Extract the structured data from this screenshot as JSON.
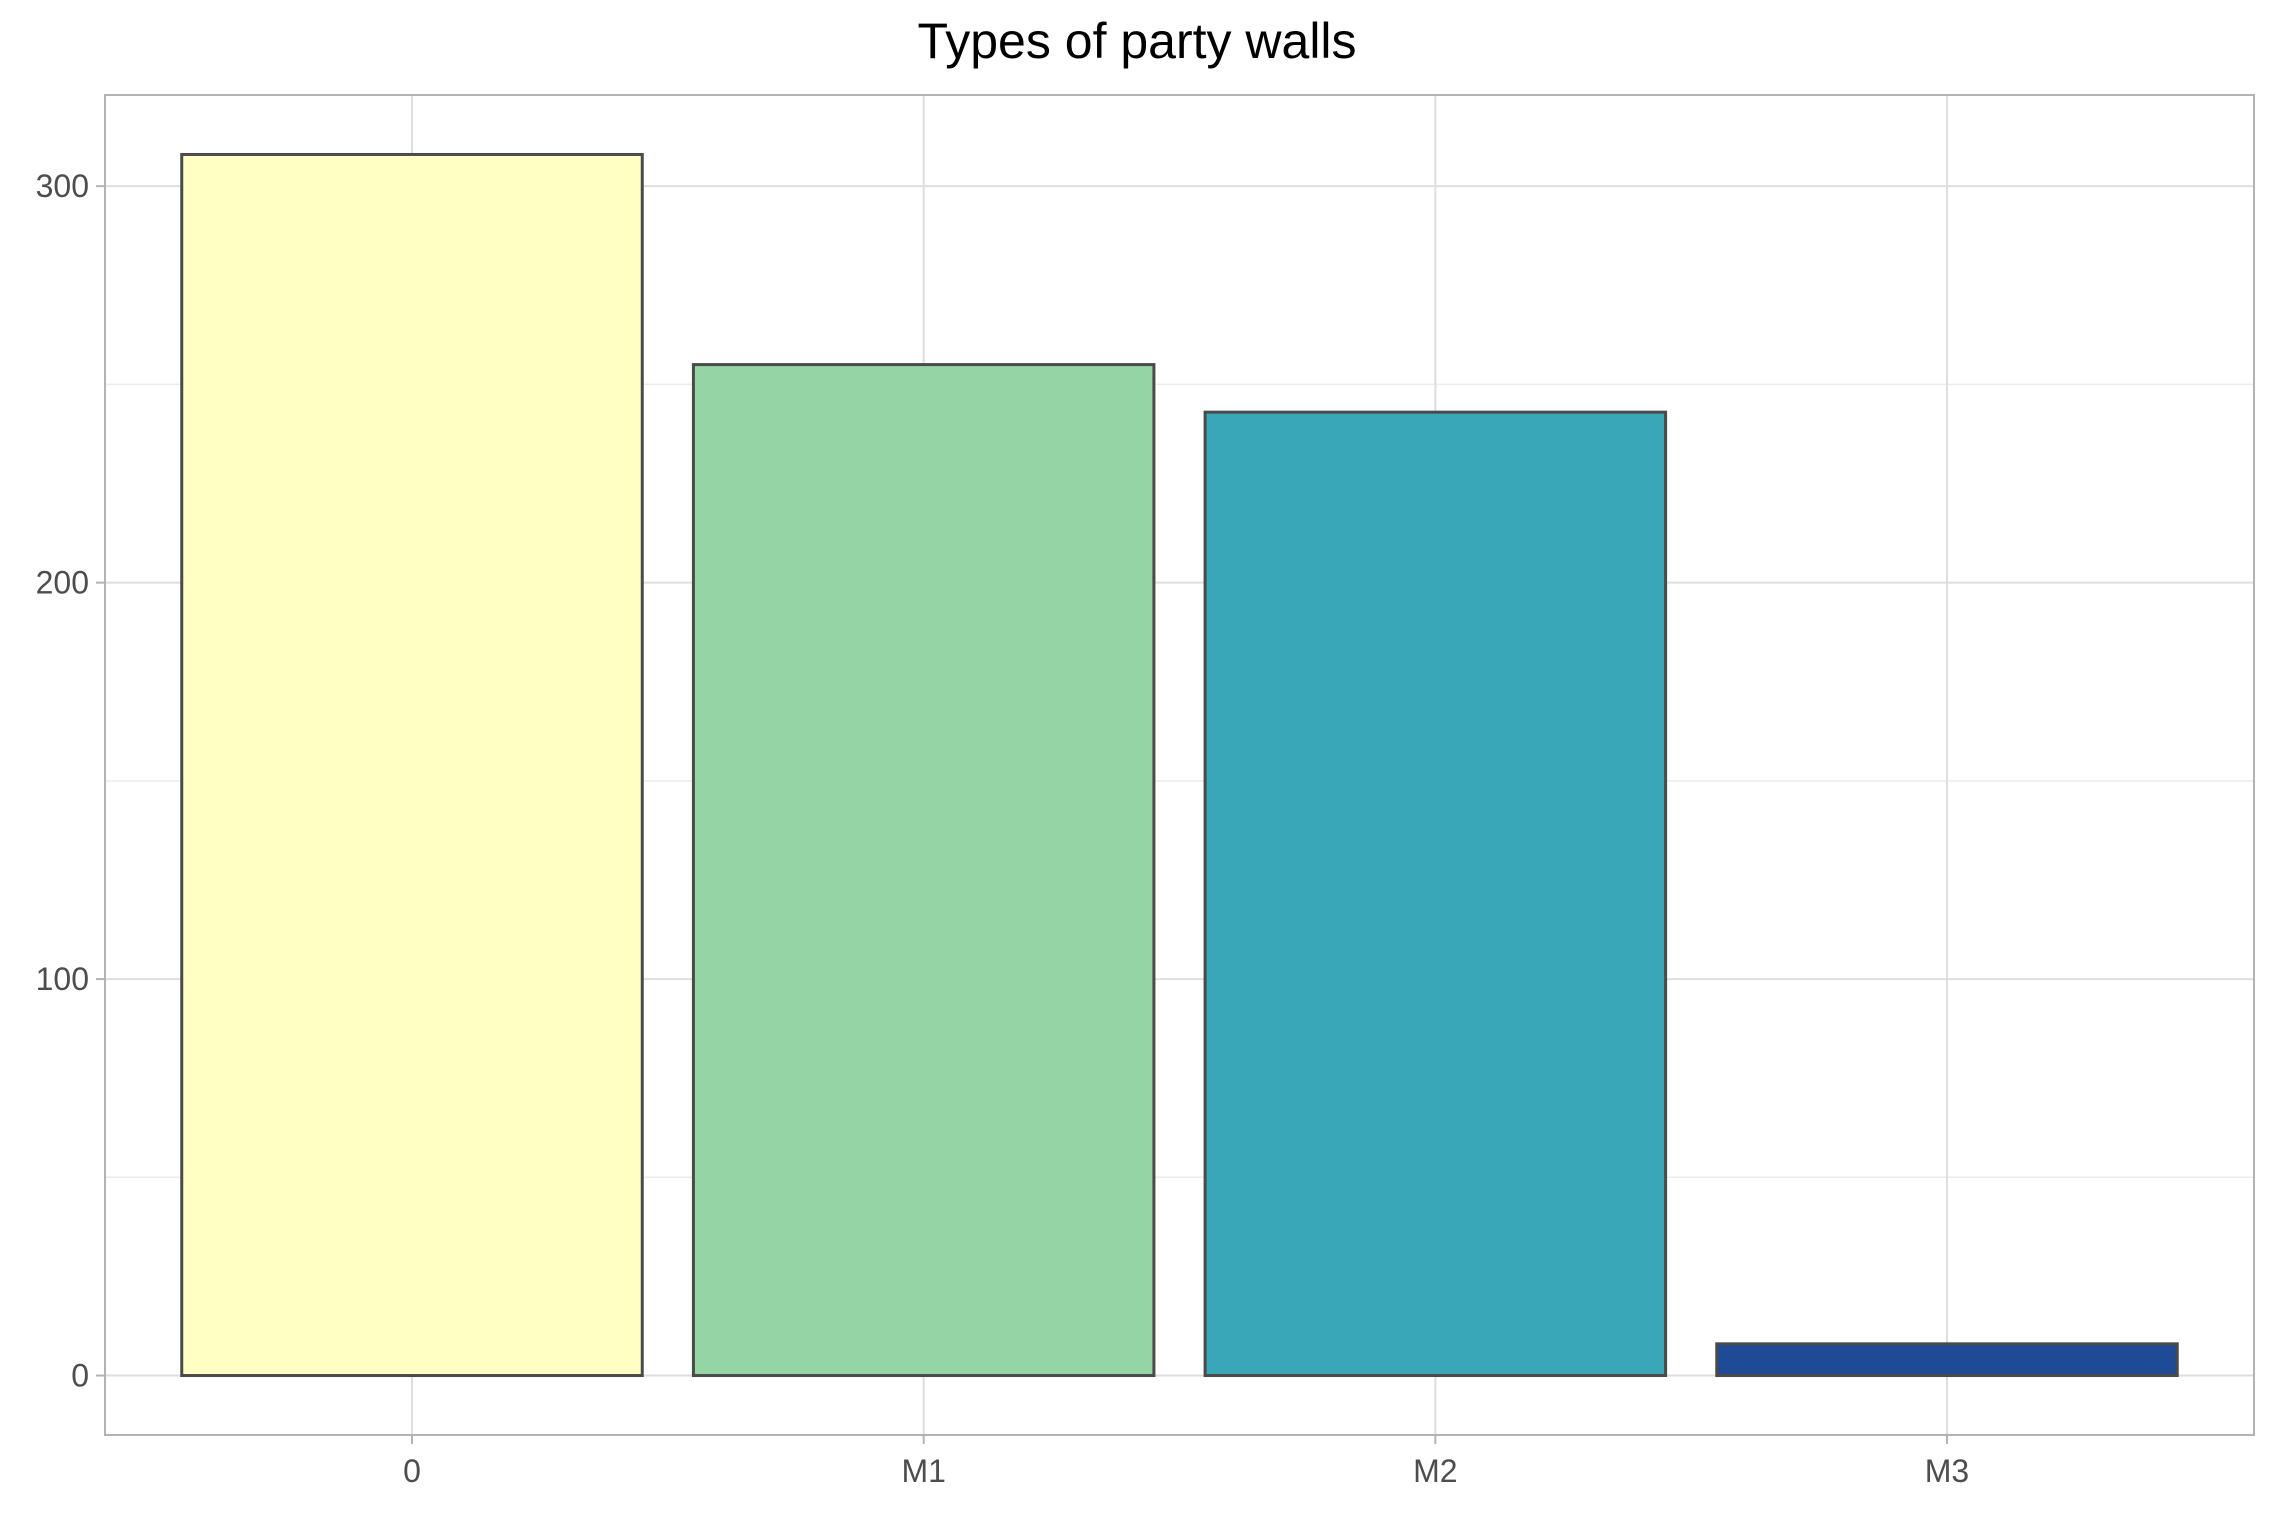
{
  "chart_data": {
    "type": "bar",
    "title": "Types of party walls",
    "xlabel": "",
    "ylabel": "",
    "categories": [
      "0",
      "M1",
      "M2",
      "M3"
    ],
    "values": [
      308,
      255,
      243,
      8
    ],
    "bar_colors": [
      "#ffffc4",
      "#95d4a4",
      "#39a7b8",
      "#1f4a96"
    ],
    "bar_outline_color": "#4a4a4a",
    "ylim": [
      -15,
      323
    ],
    "yticks": [
      0,
      100,
      200,
      300
    ],
    "grid": true,
    "panel_border_color": "#b3b3b3",
    "grid_color": "#dedede",
    "legend": "none"
  }
}
